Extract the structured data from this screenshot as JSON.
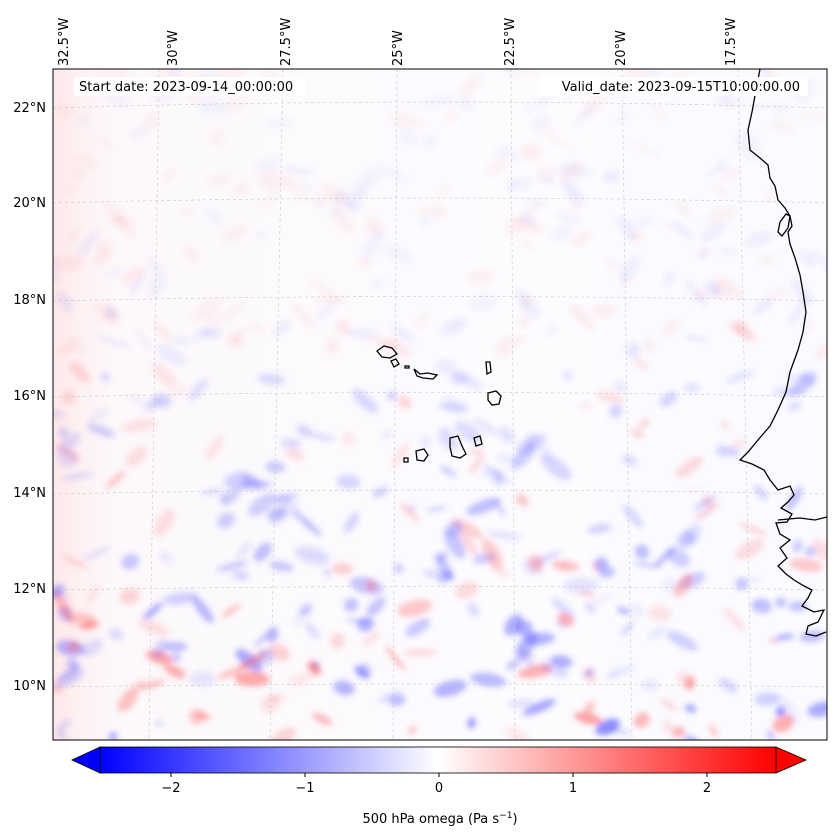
{
  "map": {
    "start_label": "Start date: 2023-09-14_00:00:00",
    "valid_label": "Valid_date: 2023-09-15T10:00:00.00",
    "lon_labels": [
      "32.5°W",
      "30°W",
      "27.5°W",
      "25°W",
      "22.5°W",
      "20°W",
      "17.5°W"
    ],
    "lat_labels": [
      "22°N",
      "20°N",
      "18°N",
      "16°N",
      "14°N",
      "12°N",
      "10°N"
    ],
    "extent": {
      "lon_min": -33,
      "lon_max": -15.6,
      "lat_min": 8.9,
      "lat_max": 22.8
    }
  },
  "colorbar": {
    "label_text": "500 hPa omega (Pa s",
    "label_sup": "−1",
    "label_tail": ")",
    "ticks": [
      "−2",
      "−1",
      "0",
      "1",
      "2"
    ],
    "range": [
      -2.5,
      2.5
    ],
    "colors": {
      "low": "#0000ff",
      "mid": "#ffffff",
      "high": "#ff0000"
    }
  }
}
